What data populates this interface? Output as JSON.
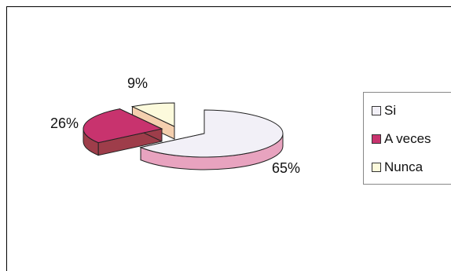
{
  "chart_data": {
    "type": "pie",
    "title": "",
    "categories": [
      "Si",
      "A veces",
      "Nunca"
    ],
    "values": [
      65,
      26,
      9
    ],
    "data_labels": [
      "65%",
      "26%",
      "9%"
    ],
    "colors": [
      "#f2f0f7",
      "#c8336e",
      "#fcfadc"
    ],
    "side_colors": [
      "#e8a3bf",
      "#9e3d4a",
      "#f4cfae"
    ],
    "exploded": true,
    "three_d": true,
    "legend_position": "right"
  }
}
